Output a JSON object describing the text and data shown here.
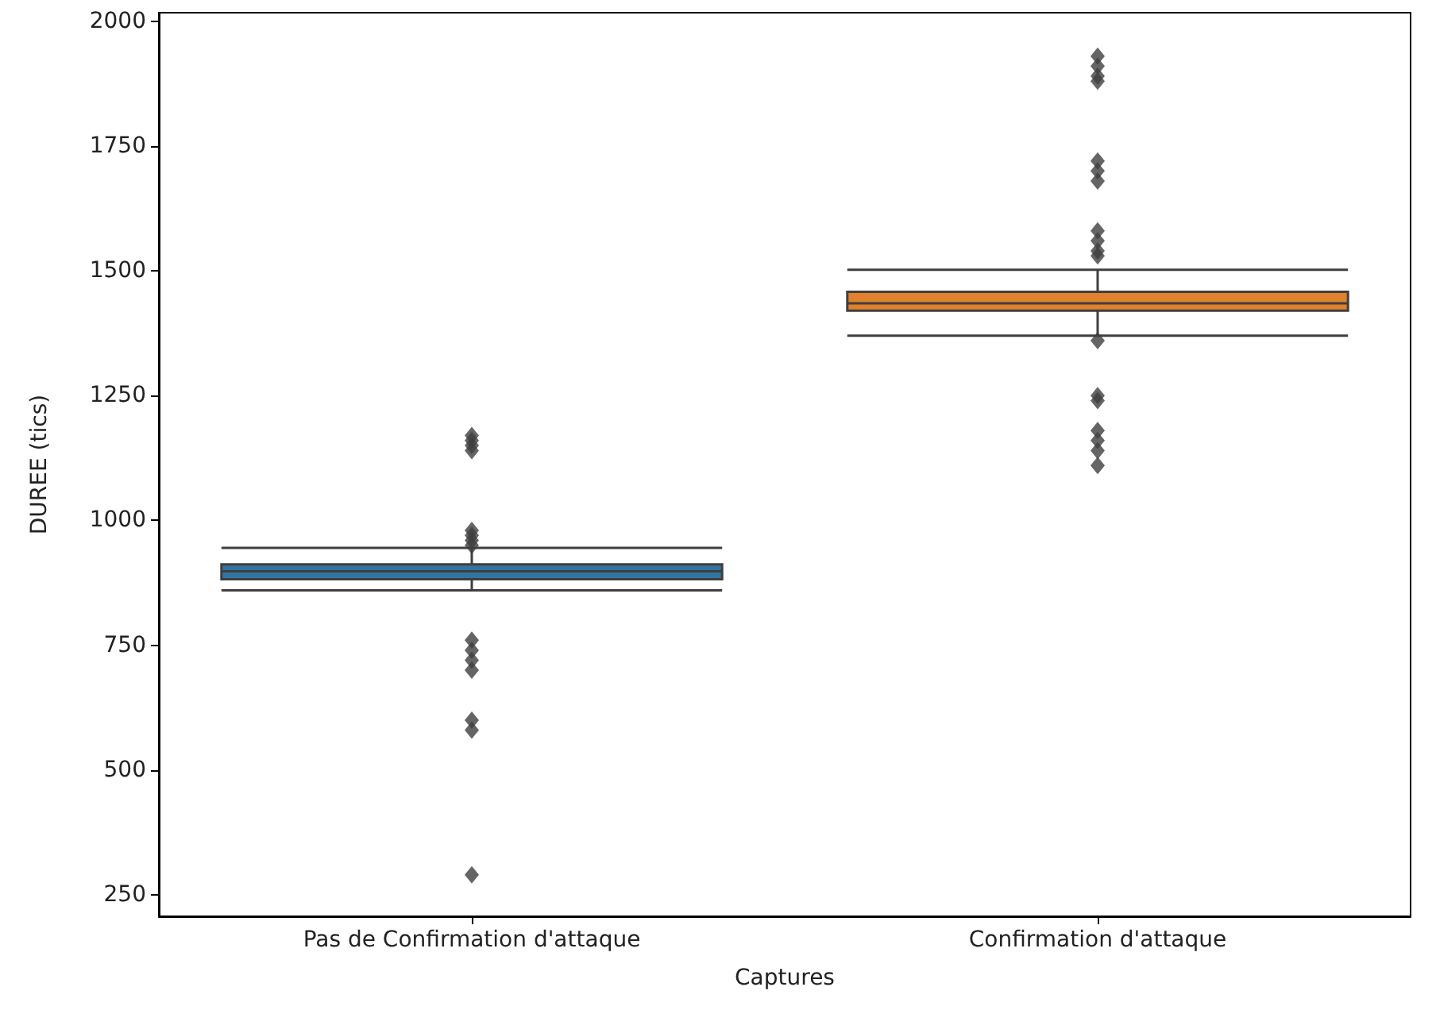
{
  "chart_data": {
    "type": "box",
    "xlabel": "Captures",
    "ylabel": "DUREE (tics)",
    "categories": [
      "Pas de Confirmation d'attaque",
      "Confirmation d'attaque"
    ],
    "colors": [
      "#3274a1",
      "#e1812c"
    ],
    "boxes": [
      {
        "low": 860,
        "q1": 882,
        "median": 898,
        "q3": 912,
        "high": 945,
        "outliers": [
          1170,
          1160,
          1150,
          1140,
          980,
          970,
          960,
          950,
          760,
          740,
          720,
          700,
          600,
          580,
          290
        ]
      },
      {
        "low": 1370,
        "q1": 1420,
        "median": 1435,
        "q3": 1458,
        "high": 1502,
        "outliers": [
          1930,
          1910,
          1890,
          1880,
          1720,
          1700,
          1680,
          1580,
          1560,
          1540,
          1530,
          1360,
          1250,
          1240,
          1180,
          1160,
          1140,
          1110
        ]
      }
    ],
    "ylim": [
      207,
      2017
    ],
    "yticks": [
      250,
      500,
      750,
      1000,
      1250,
      1500,
      1750,
      2000
    ],
    "marker": "diamond",
    "grid": false
  }
}
